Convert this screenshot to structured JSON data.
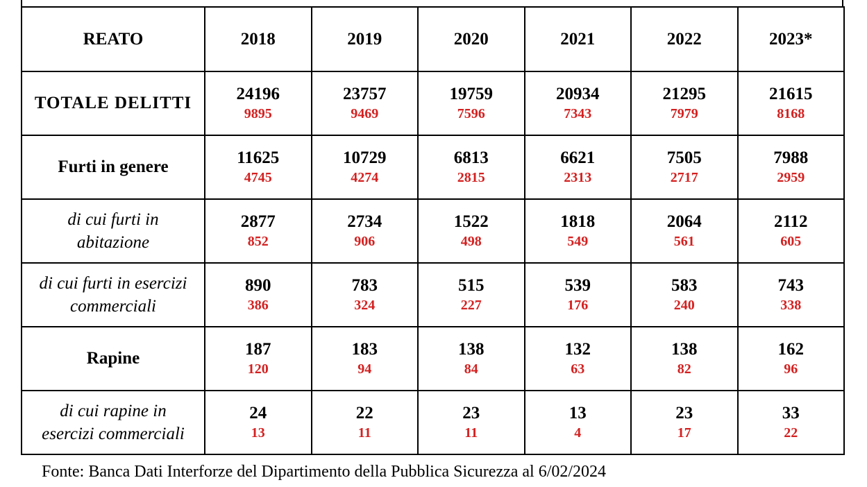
{
  "header": {
    "label": "REATO",
    "years": [
      "2018",
      "2019",
      "2020",
      "2021",
      "2022",
      "2023*"
    ]
  },
  "rows": [
    {
      "label": [
        "TOTALE DELITTI"
      ],
      "style": "bold",
      "totals": [
        "24196",
        "23757",
        "19759",
        "20934",
        "21295",
        "21615"
      ],
      "subs": [
        "9895",
        "9469",
        "7596",
        "7343",
        "7979",
        "8168"
      ]
    },
    {
      "label": [
        "Furti in genere"
      ],
      "style": "bold",
      "totals": [
        "11625",
        "10729",
        "6813",
        "6621",
        "7505",
        "7988"
      ],
      "subs": [
        "4745",
        "4274",
        "2815",
        "2313",
        "2717",
        "2959"
      ]
    },
    {
      "label": [
        "di cui furti in",
        "abitazione"
      ],
      "style": "italic",
      "totals": [
        "2877",
        "2734",
        "1522",
        "1818",
        "2064",
        "2112"
      ],
      "subs": [
        "852",
        "906",
        "498",
        "549",
        "561",
        "605"
      ]
    },
    {
      "label": [
        "di cui furti in esercizi",
        "commerciali"
      ],
      "style": "italic",
      "totals": [
        "890",
        "783",
        "515",
        "539",
        "583",
        "743"
      ],
      "subs": [
        "386",
        "324",
        "227",
        "176",
        "240",
        "338"
      ]
    },
    {
      "label": [
        "Rapine"
      ],
      "style": "bold",
      "totals": [
        "187",
        "183",
        "138",
        "132",
        "138",
        "162"
      ],
      "subs": [
        "120",
        "94",
        "84",
        "63",
        "82",
        "96"
      ]
    },
    {
      "label": [
        "di cui rapine in",
        "esercizi commerciali"
      ],
      "style": "italic",
      "totals": [
        "24",
        "22",
        "23",
        "13",
        "23",
        "33"
      ],
      "subs": [
        "13",
        "11",
        "11",
        "4",
        "17",
        "22"
      ]
    }
  ],
  "colors": {
    "sub_value": "#d42020",
    "text": "#000000",
    "border": "#000000"
  },
  "source": "Fonte: Banca Dati Interforze del Dipartimento della Pubblica Sicurezza al 6/02/2024"
}
